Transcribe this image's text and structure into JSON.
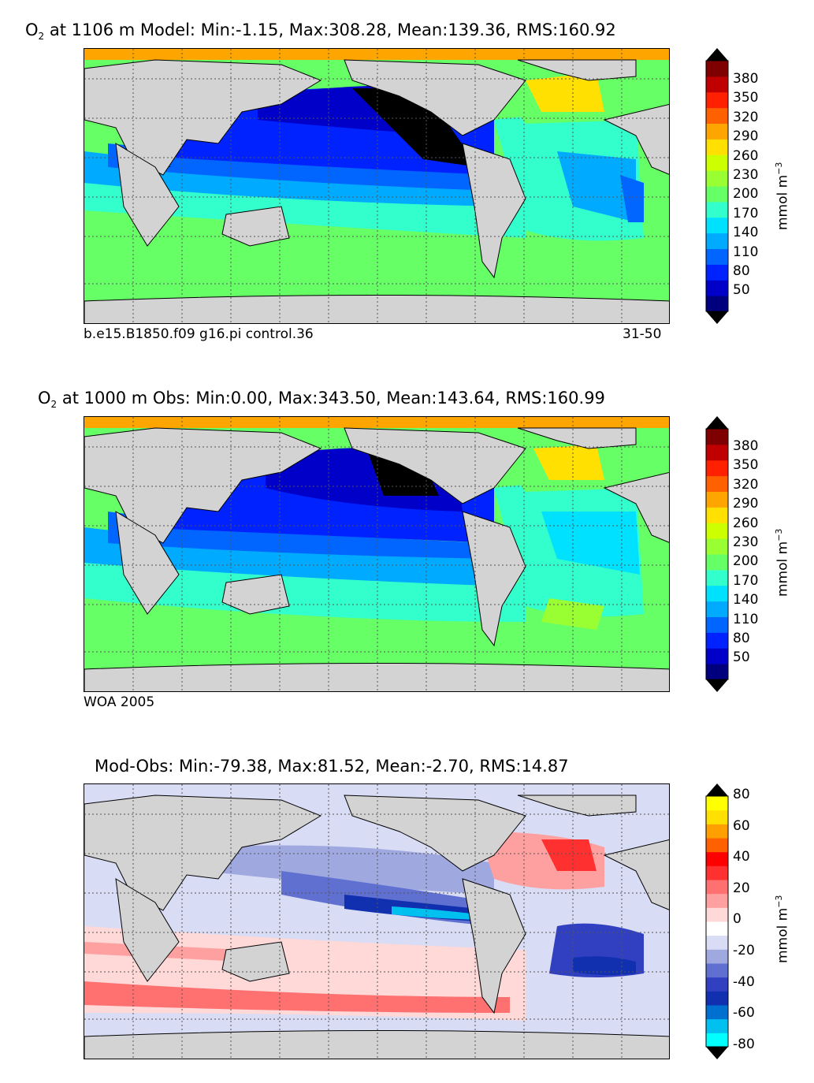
{
  "panels": [
    {
      "title_species": "O",
      "title_subscript": "2",
      "title_rest": " at 1106 m Model: Min:-1.15, Max:308.28, Mean:139.36, RMS:160.92",
      "caption_left": "b.e15.B1850.f09 g16.pi control.36",
      "caption_right": "31-50",
      "colorbar_ticks": [
        "380",
        "350",
        "320",
        "290",
        "260",
        "230",
        "200",
        "170",
        "140",
        "110",
        "80",
        "50"
      ],
      "units": "mmol m",
      "units_exp": "−3"
    },
    {
      "title_species": "O",
      "title_subscript": "2",
      "title_rest": " at 1000 m Obs: Min:0.00, Max:343.50, Mean:143.64, RMS:160.99",
      "caption_left": "WOA 2005",
      "caption_right": "",
      "colorbar_ticks": [
        "380",
        "350",
        "320",
        "290",
        "260",
        "230",
        "200",
        "170",
        "140",
        "110",
        "80",
        "50"
      ],
      "units": "mmol m",
      "units_exp": "−3"
    },
    {
      "title_species": "",
      "title_subscript": "",
      "title_rest": "Mod-Obs: Min:-79.38, Max:81.52, Mean:-2.70, RMS:14.87",
      "caption_left": "",
      "caption_right": "",
      "colorbar_ticks": [
        "80",
        "60",
        "40",
        "20",
        "0",
        "-20",
        "-40",
        "-60",
        "-80"
      ],
      "units": "mmol m",
      "units_exp": "−3"
    }
  ],
  "colors": {
    "land": "#d3d3d3",
    "o2_scale": [
      "#00007f",
      "#0000c8",
      "#0022ff",
      "#0066ff",
      "#00aaff",
      "#00e0ff",
      "#33ffcc",
      "#66ff66",
      "#99ff33",
      "#ccff00",
      "#ffe000",
      "#ffa500",
      "#ff6000",
      "#ff2000",
      "#c00000",
      "#7f0000"
    ],
    "diff_scale": [
      "#00ffff",
      "#00c0f0",
      "#0070d0",
      "#1030b0",
      "#3040c0",
      "#6070d0",
      "#a0a8e0",
      "#d8dcf4",
      "#ffffff",
      "#ffd8d8",
      "#ffa0a0",
      "#ff7070",
      "#ff3030",
      "#ff0000",
      "#ff6000",
      "#ffa000",
      "#ffe000",
      "#ffff00"
    ]
  }
}
